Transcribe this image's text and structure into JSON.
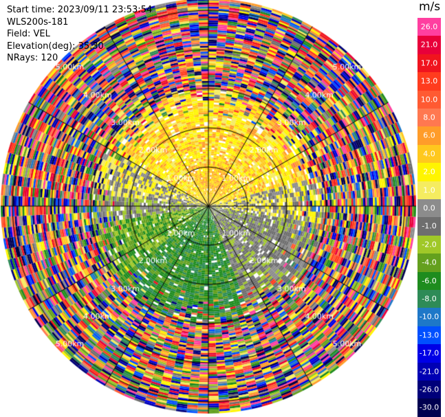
{
  "info": {
    "start_time": "Start time: 2023/09/11 23:53:54",
    "instrument": "WLS200s-181",
    "field": "Field: VEL",
    "elevation": "Elevation(deg): 35.30",
    "nrays": "NRays: 120"
  },
  "colorbar": {
    "unit": "m/s",
    "levels": [
      {
        "label": "26.0",
        "color": "#ff3fa0"
      },
      {
        "label": "21.0",
        "color": "#e8003a"
      },
      {
        "label": "17.0",
        "color": "#f0141e"
      },
      {
        "label": "13.0",
        "color": "#ff3c1e"
      },
      {
        "label": "10.0",
        "color": "#ff5a32"
      },
      {
        "label": "8.0",
        "color": "#ff7850"
      },
      {
        "label": "6.0",
        "color": "#ff9c2a"
      },
      {
        "label": "4.0",
        "color": "#ffc81e"
      },
      {
        "label": "2.0",
        "color": "#fff500"
      },
      {
        "label": "1.0",
        "color": "#f5ec60"
      },
      {
        "label": "0.0",
        "color": "#8c8c8c"
      },
      {
        "label": "-1.0",
        "color": "#6e6e6e"
      },
      {
        "label": "-2.0",
        "color": "#a0c828"
      },
      {
        "label": "-4.0",
        "color": "#64a01e"
      },
      {
        "label": "-6.0",
        "color": "#1e8c1e"
      },
      {
        "label": "-8.0",
        "color": "#2e8b57"
      },
      {
        "label": "-10.0",
        "color": "#1e78c8"
      },
      {
        "label": "-13.0",
        "color": "#0050ff"
      },
      {
        "label": "-17.0",
        "color": "#0000e6"
      },
      {
        "label": "-21.0",
        "color": "#0000b4"
      },
      {
        "label": "-26.0",
        "color": "#00007a"
      },
      {
        "label": "-30.0",
        "color": "#000050"
      }
    ]
  },
  "chart_data": {
    "type": "heatmap",
    "projection": "polar PPI",
    "field": "VEL",
    "nrays": 120,
    "range_ring_labels": [
      "1.00km",
      "2.00km",
      "3.00km",
      "4.00km",
      "5.00km"
    ],
    "range_rings_km": [
      1,
      2,
      3,
      4,
      5
    ],
    "max_range_km": 5.3,
    "radial_lines_deg": [
      0,
      30,
      60,
      90,
      120,
      150,
      180,
      210,
      240,
      270,
      300,
      330
    ],
    "velocity_pattern": {
      "north_sector_ms": "1.0 to 6.0",
      "west_sector_ms": "-2.0 to 0.0",
      "south_sector_ms": "-8.0 to -2.0",
      "east_sector_ms": "-1.0 to 0.0",
      "beyond_km": 3.0,
      "beyond_description": "noise"
    },
    "colorbar_range": [
      -30,
      26
    ]
  }
}
